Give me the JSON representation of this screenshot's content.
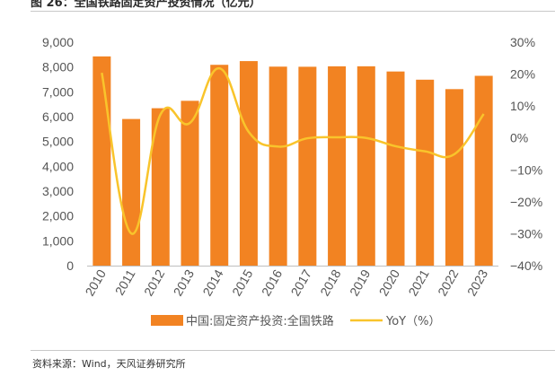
{
  "title": "图 26：全国铁路固定资产投资情况（亿元）",
  "source": "资料来源：Wind，天风证券研究所",
  "colors": {
    "bar": "#F28322",
    "line": "#F9C42B",
    "axis": "#bfbfbf",
    "text": "#555555"
  },
  "chart_data": {
    "type": "bar+line",
    "title": "全国铁路固定资产投资情况（亿元）",
    "categories": [
      "2010",
      "2011",
      "2012",
      "2013",
      "2014",
      "2015",
      "2016",
      "2017",
      "2018",
      "2019",
      "2020",
      "2021",
      "2022",
      "2023"
    ],
    "series": [
      {
        "name": "中国:固定资产投资:全国铁路",
        "type": "bar",
        "axis": "left",
        "values": [
          8427,
          5906,
          6340,
          6638,
          8088,
          8238,
          8015,
          8010,
          8028,
          8029,
          7819,
          7489,
          7109,
          7645
        ]
      },
      {
        "name": "YoY（%）",
        "type": "line",
        "axis": "right",
        "values": [
          20.4,
          -29.9,
          7.4,
          4.7,
          21.8,
          1.9,
          -2.7,
          -0.1,
          0.2,
          0.0,
          -2.6,
          -4.2,
          -5.1,
          7.5
        ]
      }
    ],
    "y_left": {
      "min": 0,
      "max": 9000,
      "step": 1000,
      "tick_labels": [
        "0",
        "1,000",
        "2,000",
        "3,000",
        "4,000",
        "5,000",
        "6,000",
        "7,000",
        "8,000",
        "9,000"
      ]
    },
    "y_right": {
      "min": -40,
      "max": 30,
      "step": 10,
      "tick_labels": [
        "−40%",
        "−30%",
        "−20%",
        "−10%",
        "0%",
        "10%",
        "20%",
        "30%"
      ]
    },
    "legend": {
      "position": "bottom",
      "entries": [
        "中国:固定资产投资:全国铁路",
        "YoY（%）"
      ]
    },
    "grid": false
  }
}
